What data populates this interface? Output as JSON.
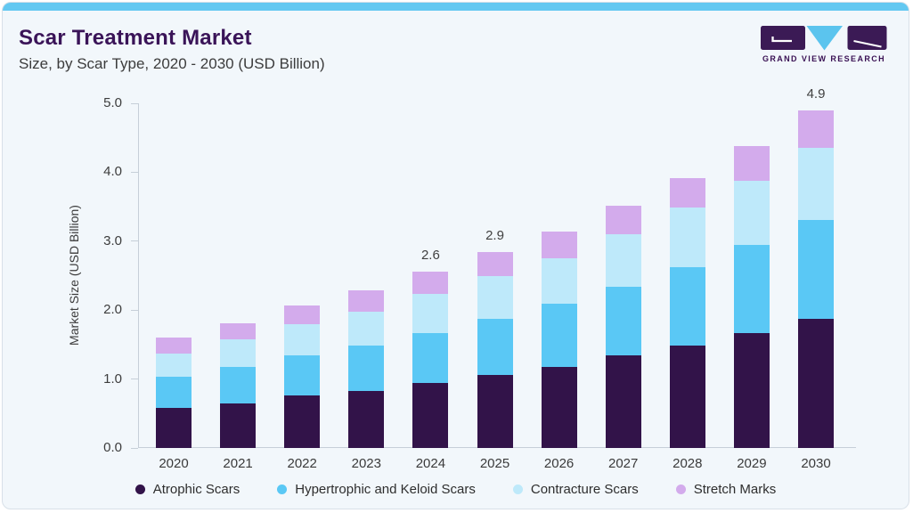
{
  "header": {
    "title": "Scar Treatment Market",
    "subtitle": "Size, by Scar Type, 2020 - 2030 (USD Billion)",
    "logo_text": "GRAND VIEW RESEARCH"
  },
  "chart_data": {
    "type": "bar",
    "stacked": true,
    "title": "Scar Treatment Market Size, by Scar Type, 2020 - 2030 (USD Billion)",
    "categories": [
      "2020",
      "2021",
      "2022",
      "2023",
      "2024",
      "2025",
      "2026",
      "2027",
      "2028",
      "2029",
      "2030"
    ],
    "series": [
      {
        "name": "Atrophic Scars",
        "color": "#321349",
        "values": [
          0.58,
          0.65,
          0.76,
          0.83,
          0.94,
          1.06,
          1.18,
          1.34,
          1.49,
          1.67,
          1.88
        ]
      },
      {
        "name": "Hypertrophic and Keloid Scars",
        "color": "#5AC8F5",
        "values": [
          0.45,
          0.53,
          0.58,
          0.65,
          0.73,
          0.81,
          0.91,
          1.0,
          1.13,
          1.27,
          1.43
        ]
      },
      {
        "name": "Contracture Scars",
        "color": "#BEE9FA",
        "values": [
          0.34,
          0.4,
          0.46,
          0.5,
          0.57,
          0.62,
          0.66,
          0.76,
          0.87,
          0.94,
          1.04
        ]
      },
      {
        "name": "Stretch Marks",
        "color": "#D3ABEC",
        "values": [
          0.23,
          0.23,
          0.27,
          0.31,
          0.32,
          0.35,
          0.39,
          0.41,
          0.43,
          0.5,
          0.55
        ]
      }
    ],
    "bar_labels": [
      "",
      "",
      "",
      "",
      "2.6",
      "2.9",
      "",
      "",
      "",
      "",
      "4.9"
    ],
    "xlabel": "",
    "ylabel": "Market Size (USD Billion)",
    "ylim": [
      0,
      5
    ],
    "yticks": [
      "0.0",
      "1.0",
      "2.0",
      "3.0",
      "4.0",
      "5.0"
    ],
    "grid": false,
    "legend_position": "bottom"
  },
  "colors": {
    "accent_strip": "#63C8F1",
    "card_bg": "#F2F7FB",
    "card_border": "#D8E0E8",
    "title_text": "#3A1458",
    "body_text": "#3C3C3C",
    "axis_line": "#C6CFD8",
    "logo_purple": "#3B1A55",
    "logo_blue": "#5BC4EE"
  }
}
